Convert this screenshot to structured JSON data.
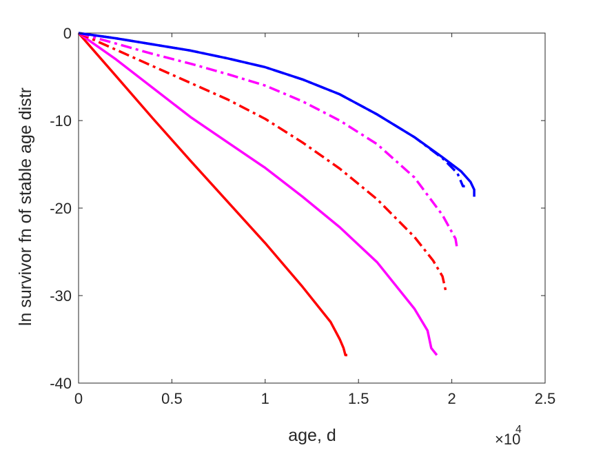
{
  "chart_data": {
    "type": "line",
    "title": "",
    "xlabel": "age, d",
    "ylabel": "ln survivor fn of stable age distr",
    "x_exponent_label": {
      "base": "×10",
      "exp": "4"
    },
    "xlim": [
      0,
      25000
    ],
    "ylim": [
      -40,
      0
    ],
    "xticks": [
      0,
      5000,
      10000,
      15000,
      20000,
      25000
    ],
    "xtick_labels": [
      "0",
      "0.5",
      "1",
      "1.5",
      "2",
      "2.5"
    ],
    "yticks": [
      0,
      -10,
      -20,
      -30,
      -40
    ],
    "ytick_labels": [
      "0",
      "-10",
      "-20",
      "-30",
      "-40"
    ],
    "grid": false,
    "legend": "none",
    "series": [
      {
        "color": "#ff0000",
        "style": "solid",
        "points": [
          [
            0,
            0
          ],
          [
            2000,
            -4.9
          ],
          [
            4000,
            -9.8
          ],
          [
            6000,
            -14.6
          ],
          [
            8000,
            -19.3
          ],
          [
            10000,
            -24
          ],
          [
            12000,
            -29
          ],
          [
            13500,
            -33
          ],
          [
            14000,
            -35
          ],
          [
            14200,
            -36
          ],
          [
            14300,
            -36.8
          ],
          [
            14400,
            -36.8
          ]
        ]
      },
      {
        "color": "#ff00ff",
        "style": "solid",
        "points": [
          [
            0,
            0
          ],
          [
            2000,
            -3
          ],
          [
            4000,
            -6.3
          ],
          [
            6000,
            -9.6
          ],
          [
            8000,
            -12.5
          ],
          [
            10000,
            -15.4
          ],
          [
            12000,
            -18.7
          ],
          [
            14000,
            -22.2
          ],
          [
            16000,
            -26.2
          ],
          [
            18000,
            -31.5
          ],
          [
            18700,
            -34
          ],
          [
            18900,
            -36
          ],
          [
            19200,
            -36.8
          ]
        ]
      },
      {
        "color": "#ff0000",
        "style": "dashdot",
        "points": [
          [
            0,
            0
          ],
          [
            2000,
            -1.9
          ],
          [
            4000,
            -3.8
          ],
          [
            6000,
            -5.7
          ],
          [
            8000,
            -7.6
          ],
          [
            10000,
            -9.8
          ],
          [
            12000,
            -12.5
          ],
          [
            14000,
            -15.5
          ],
          [
            16000,
            -19
          ],
          [
            18000,
            -23.3
          ],
          [
            19000,
            -26
          ],
          [
            19500,
            -27.8
          ],
          [
            19700,
            -29.7
          ]
        ]
      },
      {
        "color": "#ff00ff",
        "style": "dashdot",
        "points": [
          [
            0,
            0
          ],
          [
            2000,
            -1.2
          ],
          [
            4000,
            -2.4
          ],
          [
            6000,
            -3.5
          ],
          [
            8000,
            -4.7
          ],
          [
            10000,
            -6
          ],
          [
            12000,
            -7.8
          ],
          [
            14000,
            -10
          ],
          [
            16000,
            -12.7
          ],
          [
            18000,
            -16.5
          ],
          [
            19500,
            -20.8
          ],
          [
            20200,
            -23.5
          ],
          [
            20300,
            -24.8
          ]
        ]
      },
      {
        "color": "#0000ff",
        "style": "dashdot",
        "points": [
          [
            0,
            0
          ],
          [
            2000,
            -0.6
          ],
          [
            4000,
            -1.3
          ],
          [
            6000,
            -2
          ],
          [
            8000,
            -2.9
          ],
          [
            10000,
            -3.9
          ],
          [
            12000,
            -5.3
          ],
          [
            14000,
            -7
          ],
          [
            16000,
            -9.3
          ],
          [
            18000,
            -11.9
          ],
          [
            19500,
            -14.3
          ],
          [
            20300,
            -16
          ],
          [
            20600,
            -17.5
          ],
          [
            20700,
            -17.5
          ]
        ]
      },
      {
        "color": "#0000ff",
        "style": "solid",
        "points": [
          [
            0,
            0
          ],
          [
            2000,
            -0.6
          ],
          [
            4000,
            -1.3
          ],
          [
            6000,
            -2
          ],
          [
            8000,
            -2.9
          ],
          [
            10000,
            -3.9
          ],
          [
            12000,
            -5.3
          ],
          [
            14000,
            -7
          ],
          [
            16000,
            -9.3
          ],
          [
            18000,
            -11.9
          ],
          [
            19500,
            -14.2
          ],
          [
            20500,
            -15.8
          ],
          [
            21000,
            -17
          ],
          [
            21200,
            -17.9
          ],
          [
            21200,
            -18.7
          ]
        ]
      }
    ]
  }
}
